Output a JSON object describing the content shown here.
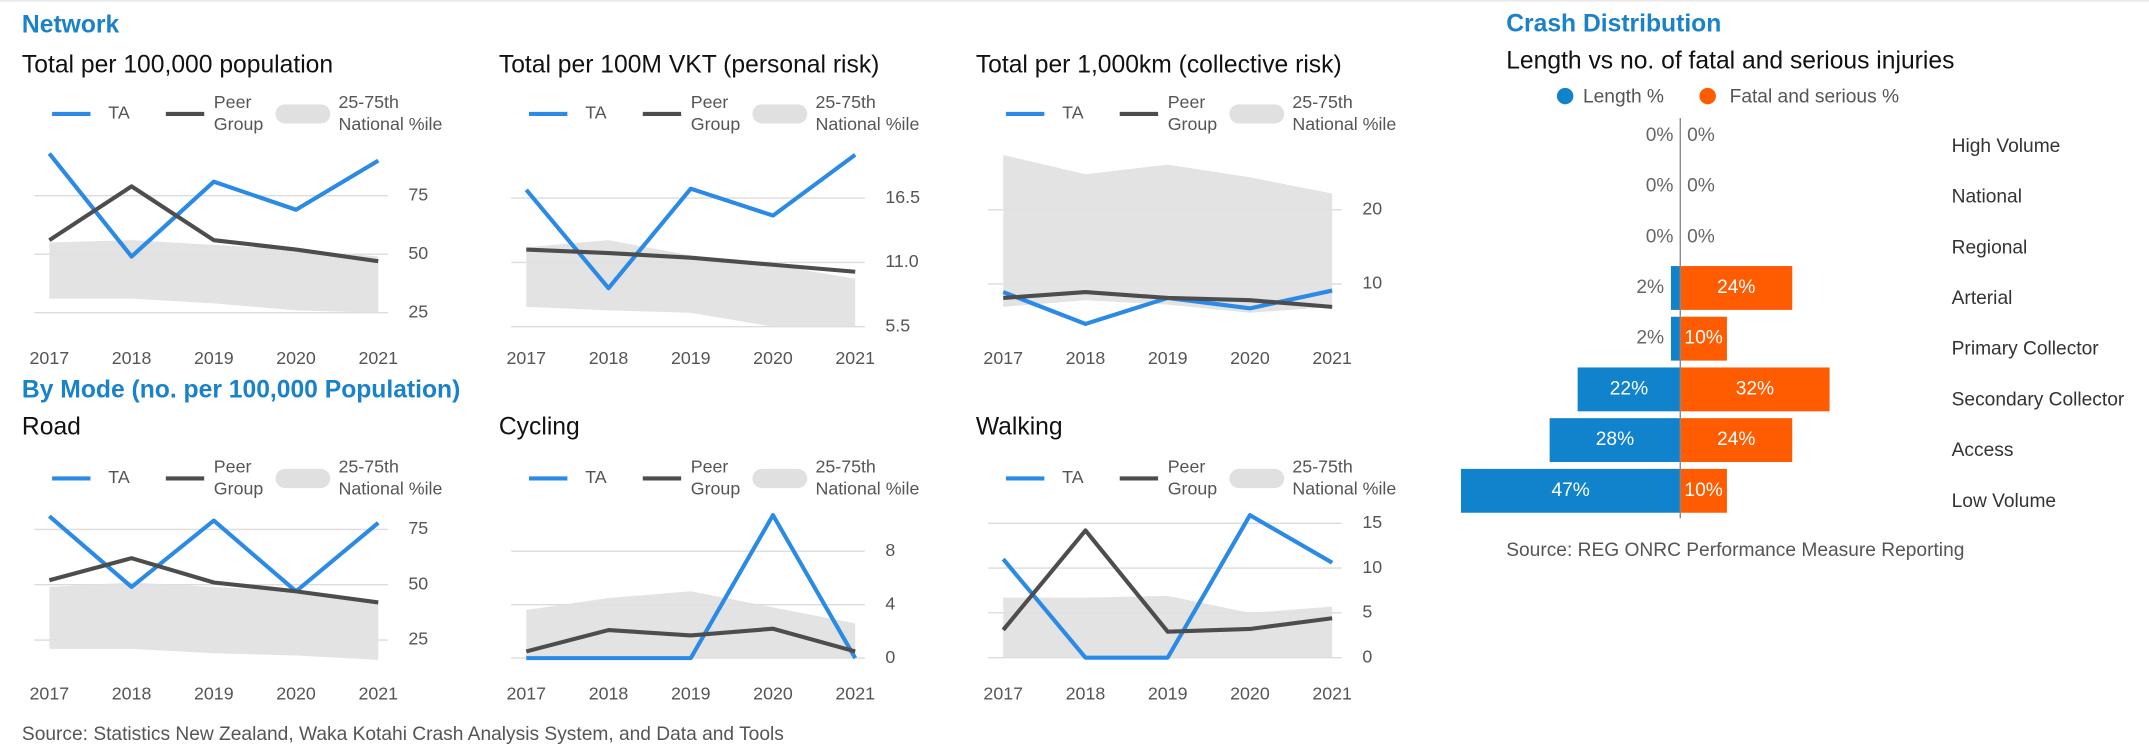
{
  "headings": {
    "network": "Network",
    "by_mode": "By Mode (no. per 100,000 Population)"
  },
  "source": "Source: Statistics New Zealand, Waka Kotahi Crash Analysis System, and Data and Tools",
  "chart_data": [
    {
      "type": "line",
      "title": "Total per 100,000 population",
      "x": [
        2017,
        2018,
        2019,
        2020,
        2021
      ],
      "xlim": [
        2017,
        2021
      ],
      "xticks": [
        2017,
        2018,
        2019,
        2020,
        2021
      ],
      "ylim": [
        18,
        100
      ],
      "yticks": [
        25,
        50,
        75
      ],
      "grid": true,
      "series": [
        {
          "name": "TA",
          "color": "#2a8ae6",
          "values": [
            93,
            49,
            81,
            69,
            90
          ]
        },
        {
          "name": "Peer Group",
          "color": "#4d4d4d",
          "values": [
            56,
            79,
            56,
            52,
            47
          ]
        },
        {
          "name": "25-75th National %ile",
          "color": "#e0e0e0",
          "low": [
            31,
            31,
            29,
            26,
            25
          ],
          "high": [
            55,
            56,
            54,
            52,
            49
          ]
        }
      ]
    },
    {
      "type": "line",
      "title": "Total per 100M VKT (personal risk)",
      "x": [
        2017,
        2018,
        2019,
        2020,
        2021
      ],
      "xlim": [
        2017,
        2021
      ],
      "xticks": [
        2017,
        2018,
        2019,
        2020,
        2021
      ],
      "ylim": [
        5.3,
        21.7
      ],
      "yticks": [
        5.5,
        {
          "value": 11,
          "label": "11.0"
        },
        16.5
      ],
      "grid": true,
      "series": [
        {
          "name": "TA",
          "color": "#2a8ae6",
          "values": [
            17.2,
            8.8,
            17.3,
            15.0,
            20.2
          ]
        },
        {
          "name": "Peer Group",
          "color": "#4d4d4d",
          "values": [
            12.1,
            11.8,
            11.4,
            10.8,
            10.2
          ]
        },
        {
          "name": "25-75th National %ile",
          "color": "#e0e0e0",
          "low": [
            7.2,
            6.9,
            6.7,
            5.5,
            5.5
          ],
          "high": [
            12.3,
            12.9,
            11.6,
            10.8,
            9.6
          ]
        }
      ]
    },
    {
      "type": "line",
      "title": "Total per 1,000km (collective risk)",
      "x": [
        2017,
        2018,
        2019,
        2020,
        2021
      ],
      "xlim": [
        2017,
        2021
      ],
      "xticks": [
        2017,
        2018,
        2019,
        2020,
        2021
      ],
      "ylim": [
        3.9,
        29.8
      ],
      "yticks": [
        10,
        20
      ],
      "grid": true,
      "series": [
        {
          "name": "TA",
          "color": "#2a8ae6",
          "values": [
            8.9,
            4.6,
            8.1,
            6.7,
            9.1
          ]
        },
        {
          "name": "Peer Group",
          "color": "#4d4d4d",
          "values": [
            8.1,
            8.9,
            8.1,
            7.8,
            6.9
          ]
        },
        {
          "name": "25-75th National %ile",
          "color": "#e0e0e0",
          "low": [
            6.9,
            7.8,
            7.2,
            6.1,
            6.9
          ],
          "high": [
            27.4,
            24.8,
            26.1,
            24.4,
            22.2
          ]
        }
      ]
    },
    {
      "type": "line",
      "title": "Road",
      "x": [
        2017,
        2018,
        2019,
        2020,
        2021
      ],
      "xlim": [
        2017,
        2021
      ],
      "xticks": [
        2017,
        2018,
        2019,
        2020,
        2021
      ],
      "ylim": [
        15,
        87.5
      ],
      "yticks": [
        25,
        50,
        75
      ],
      "grid": true,
      "series": [
        {
          "name": "TA",
          "color": "#2a8ae6",
          "values": [
            81,
            49,
            79,
            47,
            78
          ]
        },
        {
          "name": "Peer Group",
          "color": "#4d4d4d",
          "values": [
            52,
            62,
            51,
            47,
            42
          ]
        },
        {
          "name": "25-75th National %ile",
          "color": "#e0e0e0",
          "low": [
            21,
            21,
            19,
            18,
            16
          ],
          "high": [
            49,
            51,
            49,
            47,
            41
          ]
        }
      ]
    },
    {
      "type": "line",
      "title": "Cycling",
      "x": [
        2017,
        2018,
        2019,
        2020,
        2021
      ],
      "xlim": [
        2017,
        2021
      ],
      "xticks": [
        2017,
        2018,
        2019,
        2020,
        2021
      ],
      "ylim": [
        -0.3,
        11.7
      ],
      "yticks": [
        0,
        4,
        8
      ],
      "grid": true,
      "series": [
        {
          "name": "TA",
          "color": "#2a8ae6",
          "values": [
            0,
            0,
            0,
            10.7,
            0
          ]
        },
        {
          "name": "Peer Group",
          "color": "#4d4d4d",
          "values": [
            0.5,
            2.1,
            1.7,
            2.2,
            0.5
          ]
        },
        {
          "name": "25-75th National %ile",
          "color": "#e0e0e0",
          "low": [
            0,
            0,
            0,
            0,
            0
          ],
          "high": [
            3.6,
            4.5,
            5.0,
            3.8,
            2.6
          ]
        }
      ]
    },
    {
      "type": "line",
      "title": "Walking",
      "x": [
        2017,
        2018,
        2019,
        2020,
        2021
      ],
      "xlim": [
        2017,
        2021
      ],
      "xticks": [
        2017,
        2018,
        2019,
        2020,
        2021
      ],
      "ylim": [
        -0.5,
        17.4
      ],
      "yticks": [
        0,
        5,
        10,
        15
      ],
      "grid": true,
      "series": [
        {
          "name": "TA",
          "color": "#2a8ae6",
          "values": [
            11.0,
            0,
            0,
            15.9,
            10.6
          ]
        },
        {
          "name": "Peer Group",
          "color": "#4d4d4d",
          "values": [
            3.1,
            14.2,
            2.9,
            3.2,
            4.4
          ]
        },
        {
          "name": "25-75th National %ile",
          "color": "#e0e0e0",
          "low": [
            0,
            0,
            0,
            0,
            0
          ],
          "high": [
            6.7,
            6.7,
            6.9,
            5.0,
            5.7
          ]
        }
      ]
    },
    {
      "type": "diverging-bar",
      "title": "Crash Distribution",
      "subtitle": "Length vs no. of fatal and serious injuries",
      "categories": [
        "High Volume",
        "National",
        "Regional",
        "Arterial",
        "Primary Collector",
        "Secondary Collector",
        "Access",
        "Low Volume"
      ],
      "series": [
        {
          "name": "Length %",
          "color": "#1182cc",
          "values": [
            0,
            0,
            0,
            2,
            2,
            22,
            28,
            47
          ],
          "value_labels": [
            "0%",
            "0%",
            "0%",
            "2%",
            "2%",
            "22%",
            "28%",
            "47%"
          ]
        },
        {
          "name": "Fatal and serious %",
          "color": "#ff5b00",
          "values": [
            0,
            0,
            0,
            24,
            10,
            32,
            24,
            10
          ],
          "value_labels": [
            "0%",
            "0%",
            "0%",
            "24%",
            "10%",
            "32%",
            "24%",
            "10%"
          ]
        }
      ],
      "source": "Source: REG ONRC Performance Measure Reporting"
    }
  ]
}
